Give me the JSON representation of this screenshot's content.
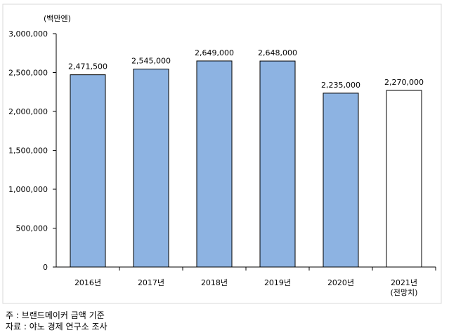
{
  "chart_data": {
    "type": "bar",
    "unit_label": "(백만엔)",
    "categories": [
      "2016년",
      "2017년",
      "2018년",
      "2019년",
      "2020년",
      "2021년"
    ],
    "category_sublabels": [
      "",
      "",
      "",
      "",
      "",
      "(전망치)"
    ],
    "values": [
      2471500,
      2545000,
      2649000,
      2648000,
      2235000,
      2270000
    ],
    "value_labels": [
      "2,471,500",
      "2,545,000",
      "2,649,000",
      "2,648,000",
      "2,235,000",
      "2,270,000"
    ],
    "projected": [
      false,
      false,
      false,
      false,
      false,
      true
    ],
    "ylim": [
      0,
      3000000
    ],
    "yticks": [
      0,
      500000,
      1000000,
      1500000,
      2000000,
      2500000,
      3000000
    ],
    "ytick_labels": [
      "0",
      "500,000",
      "1,000,000",
      "1,500,000",
      "2,000,000",
      "2,500,000",
      "3,000,000"
    ],
    "grid": false,
    "legend": "none",
    "colors": {
      "bar": "#8db3e2",
      "projected_bar": "#ffffff",
      "bar_stroke": "#000000",
      "frame": "#d9d9d9"
    }
  },
  "notes": {
    "note1": "주 : 브랜드메이커 금액 기준",
    "note2": "자료 : 야노 경제 연구소 조사"
  }
}
